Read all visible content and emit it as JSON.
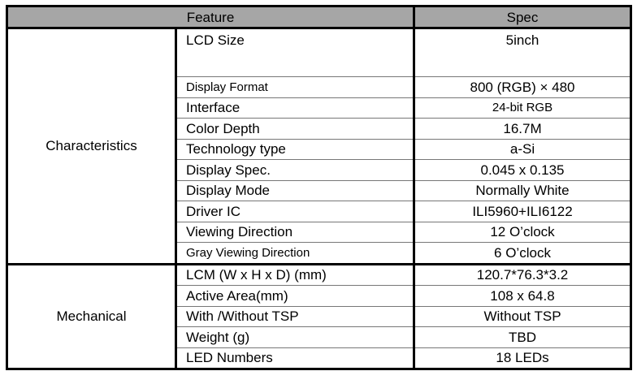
{
  "header": {
    "feature": "Feature",
    "spec": "Spec"
  },
  "groups": [
    {
      "name": "Characteristics",
      "rows": [
        {
          "feature": "LCD Size",
          "spec": "5inch"
        },
        {
          "feature": "Display Format",
          "spec": "800 (RGB) × 480"
        },
        {
          "feature": "Interface",
          "spec": "24-bit RGB"
        },
        {
          "feature": "Color Depth",
          "spec": "16.7M"
        },
        {
          "feature": "Technology type",
          "spec": "a-Si"
        },
        {
          "feature": "Display Spec.",
          "spec": "0.045 x 0.135"
        },
        {
          "feature": "Display Mode",
          "spec": "Normally White"
        },
        {
          "feature": "Driver IC",
          "spec": "ILI5960+ILI6122"
        },
        {
          "feature": "Viewing Direction",
          "spec": "12 O’clock"
        },
        {
          "feature": "Gray Viewing Direction",
          "spec": "6 O’clock"
        }
      ]
    },
    {
      "name": "Mechanical",
      "rows": [
        {
          "feature": "LCM (W x H x D) (mm)",
          "spec": "120.7*76.3*3.2"
        },
        {
          "feature": "Active Area(mm)",
          "spec": "108 x 64.8"
        },
        {
          "feature": "With /Without TSP",
          "spec": "Without TSP"
        },
        {
          "feature": "Weight (g)",
          "spec": "TBD"
        },
        {
          "feature": "LED Numbers",
          "spec": "18 LEDs"
        }
      ]
    }
  ],
  "colors": {
    "header_bg": "#a6a6a6"
  }
}
